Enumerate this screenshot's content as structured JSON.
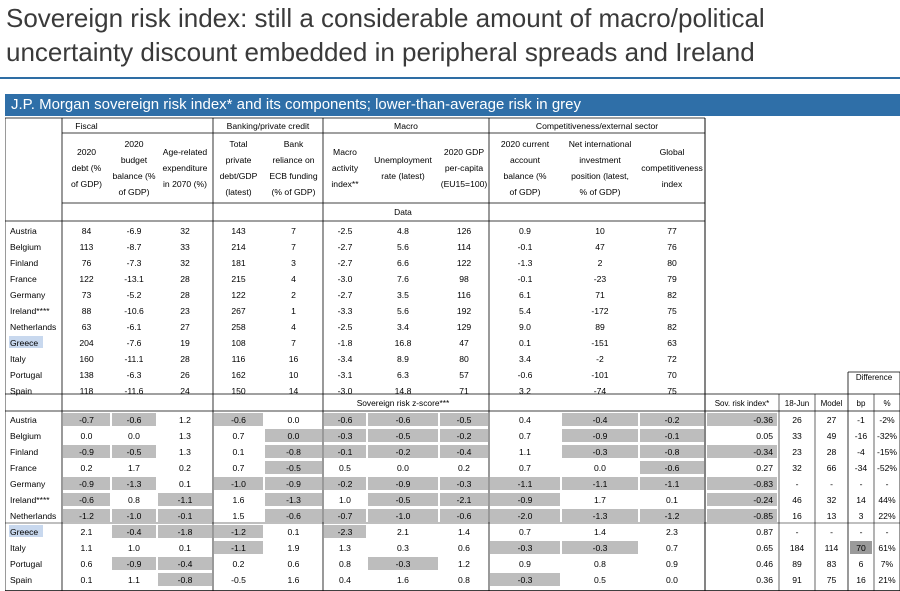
{
  "slide": {
    "title_line1": "Sovereign risk index: still a considerable amount of macro/political",
    "title_line2": "uncertainty discount embedded in peripheral spreads and Ireland",
    "banner": "J.P. Morgan sovereign risk index* and its components; lower-than-average risk in grey"
  },
  "groups": {
    "fiscal": "Fiscal",
    "banking": "Banking/private credit",
    "macro": "Macro",
    "comp": "Competitiveness/external sector"
  },
  "columns": [
    [
      "2020",
      "debt (%",
      "of GDP)"
    ],
    [
      "2020",
      "budget",
      "balance (%",
      "of GDP)"
    ],
    [
      "Age-related",
      "expenditure",
      "in 2070 (%)"
    ],
    [
      "Total",
      "private",
      "debt/GDP",
      "(latest)"
    ],
    [
      "Bank",
      "reliance on",
      "ECB funding",
      "(% of GDP)"
    ],
    [
      "Macro",
      "activity",
      "index**"
    ],
    [
      "Unemployment",
      "rate (latest)"
    ],
    [
      "2020 GDP",
      "per-capita",
      "(EU15=100)"
    ],
    [
      "2020 current",
      "account",
      "balance (%",
      "of GDP)"
    ],
    [
      "Net international",
      "investment",
      "position (latest,",
      "% of GDP)"
    ],
    [
      "Global",
      "competitiveness",
      "index"
    ]
  ],
  "data_label": "Data",
  "zscore_label": "Sovereign risk z-score***",
  "right_headers": {
    "risk_index": "Sov. risk index*",
    "date": "18-Jun",
    "model": "Model",
    "difference": "Difference",
    "bp": "bp",
    "pct": "%"
  },
  "data_rows": [
    {
      "country": "Austria",
      "values": [
        "84",
        "-6.9",
        "32",
        "143",
        "7",
        "-2.5",
        "4.8",
        "126",
        "0.9",
        "10",
        "77"
      ]
    },
    {
      "country": "Belgium",
      "values": [
        "113",
        "-8.7",
        "33",
        "214",
        "7",
        "-2.7",
        "5.6",
        "114",
        "-0.1",
        "47",
        "76"
      ]
    },
    {
      "country": "Finland",
      "values": [
        "76",
        "-7.3",
        "32",
        "181",
        "3",
        "-2.7",
        "6.6",
        "122",
        "-1.3",
        "2",
        "80"
      ]
    },
    {
      "country": "France",
      "values": [
        "122",
        "-13.1",
        "28",
        "215",
        "4",
        "-3.0",
        "7.6",
        "98",
        "-0.1",
        "-23",
        "79"
      ]
    },
    {
      "country": "Germany",
      "values": [
        "73",
        "-5.2",
        "28",
        "122",
        "2",
        "-2.7",
        "3.5",
        "116",
        "6.1",
        "71",
        "82"
      ]
    },
    {
      "country": "Ireland****",
      "values": [
        "88",
        "-10.6",
        "23",
        "267",
        "1",
        "-3.3",
        "5.6",
        "192",
        "5.4",
        "-172",
        "75"
      ]
    },
    {
      "country": "Netherlands",
      "values": [
        "63",
        "-6.1",
        "27",
        "258",
        "4",
        "-2.5",
        "3.4",
        "129",
        "9.0",
        "89",
        "82"
      ]
    },
    {
      "country": "Greece",
      "values": [
        "204",
        "-7.6",
        "19",
        "108",
        "7",
        "-1.8",
        "16.8",
        "47",
        "0.1",
        "-151",
        "63"
      ]
    },
    {
      "country": "Italy",
      "values": [
        "160",
        "-11.1",
        "28",
        "116",
        "16",
        "-3.4",
        "8.9",
        "80",
        "3.4",
        "-2",
        "72"
      ]
    },
    {
      "country": "Portugal",
      "values": [
        "138",
        "-6.3",
        "26",
        "162",
        "10",
        "-3.1",
        "6.3",
        "57",
        "-0.6",
        "-101",
        "70"
      ]
    },
    {
      "country": "Spain",
      "values": [
        "118",
        "-11.6",
        "24",
        "150",
        "14",
        "-3.0",
        "14.8",
        "71",
        "3.2",
        "-74",
        "75"
      ]
    }
  ],
  "z_rows": [
    {
      "country": "Austria",
      "values": [
        "-0.7",
        "-0.6",
        "1.2",
        "-0.6",
        "0.0",
        "-0.6",
        "-0.6",
        "-0.5",
        "0.4",
        "-0.4",
        "-0.2"
      ],
      "grey": [
        1,
        1,
        0,
        1,
        0,
        1,
        1,
        1,
        0,
        1,
        1
      ],
      "risk": "-0.36",
      "risk_grey": 1,
      "jun": "26",
      "model": "27",
      "bp": "-1",
      "pct": "-2%"
    },
    {
      "country": "Belgium",
      "values": [
        "0.0",
        "0.0",
        "1.3",
        "0.7",
        "0.0",
        "-0.3",
        "-0.5",
        "-0.2",
        "0.7",
        "-0.9",
        "-0.1"
      ],
      "grey": [
        0,
        0,
        0,
        0,
        1,
        1,
        1,
        1,
        0,
        1,
        1
      ],
      "risk": "0.05",
      "risk_grey": 0,
      "jun": "33",
      "model": "49",
      "bp": "-16",
      "pct": "-32%"
    },
    {
      "country": "Finland",
      "values": [
        "-0.9",
        "-0.5",
        "1.3",
        "0.1",
        "-0.8",
        "-0.1",
        "-0.2",
        "-0.4",
        "1.1",
        "-0.3",
        "-0.8"
      ],
      "grey": [
        1,
        1,
        0,
        0,
        1,
        1,
        1,
        1,
        0,
        1,
        1
      ],
      "risk": "-0.34",
      "risk_grey": 1,
      "jun": "23",
      "model": "28",
      "bp": "-4",
      "pct": "-15%"
    },
    {
      "country": "France",
      "values": [
        "0.2",
        "1.7",
        "0.2",
        "0.7",
        "-0.5",
        "0.5",
        "0.0",
        "0.2",
        "0.7",
        "0.0",
        "-0.6"
      ],
      "grey": [
        0,
        0,
        0,
        0,
        1,
        0,
        0,
        0,
        0,
        0,
        1
      ],
      "risk": "0.27",
      "risk_grey": 0,
      "jun": "32",
      "model": "66",
      "bp": "-34",
      "pct": "-52%"
    },
    {
      "country": "Germany",
      "values": [
        "-0.9",
        "-1.3",
        "0.1",
        "-1.0",
        "-0.9",
        "-0.2",
        "-0.9",
        "-0.3",
        "-1.1",
        "-1.1",
        "-1.1"
      ],
      "grey": [
        1,
        1,
        0,
        1,
        1,
        1,
        1,
        1,
        1,
        1,
        1
      ],
      "risk": "-0.83",
      "risk_grey": 1,
      "jun": "-",
      "model": "-",
      "bp": "-",
      "pct": "-"
    },
    {
      "country": "Ireland****",
      "values": [
        "-0.6",
        "0.8",
        "-1.1",
        "1.6",
        "-1.3",
        "1.0",
        "-0.5",
        "-2.1",
        "-0.9",
        "1.7",
        "0.1"
      ],
      "grey": [
        1,
        0,
        1,
        0,
        1,
        0,
        1,
        1,
        1,
        0,
        0
      ],
      "risk": "-0.24",
      "risk_grey": 1,
      "jun": "46",
      "model": "32",
      "bp": "14",
      "pct": "44%"
    },
    {
      "country": "Netherlands",
      "values": [
        "-1.2",
        "-1.0",
        "-0.1",
        "1.5",
        "-0.6",
        "-0.7",
        "-1.0",
        "-0.6",
        "-2.0",
        "-1.3",
        "-1.2"
      ],
      "grey": [
        1,
        1,
        1,
        0,
        1,
        1,
        1,
        1,
        1,
        1,
        1
      ],
      "risk": "-0.85",
      "risk_grey": 1,
      "jun": "16",
      "model": "13",
      "bp": "3",
      "pct": "22%"
    },
    {
      "country": "Greece",
      "values": [
        "2.1",
        "-0.4",
        "-1.8",
        "-1.2",
        "0.1",
        "-2.3",
        "2.1",
        "1.4",
        "0.7",
        "1.4",
        "2.3"
      ],
      "grey": [
        0,
        1,
        1,
        1,
        0,
        1,
        0,
        0,
        0,
        0,
        0
      ],
      "risk": "0.87",
      "risk_grey": 0,
      "jun": "-",
      "model": "-",
      "bp": "-",
      "pct": "-"
    },
    {
      "country": "Italy",
      "values": [
        "1.1",
        "1.0",
        "0.1",
        "-1.1",
        "1.9",
        "1.3",
        "0.3",
        "0.6",
        "-0.3",
        "-0.3",
        "0.7"
      ],
      "grey": [
        0,
        0,
        0,
        1,
        0,
        0,
        0,
        0,
        1,
        1,
        0
      ],
      "risk": "0.65",
      "risk_grey": 0,
      "jun": "184",
      "model": "114",
      "bp": "70",
      "pct": "61%"
    },
    {
      "country": "Portugal",
      "values": [
        "0.6",
        "-0.9",
        "-0.4",
        "0.2",
        "0.6",
        "0.8",
        "-0.3",
        "1.2",
        "0.9",
        "0.8",
        "0.9"
      ],
      "grey": [
        0,
        1,
        1,
        0,
        0,
        0,
        1,
        0,
        0,
        0,
        0
      ],
      "risk": "0.46",
      "risk_grey": 0,
      "jun": "89",
      "model": "83",
      "bp": "6",
      "pct": "7%"
    },
    {
      "country": "Spain",
      "values": [
        "0.1",
        "1.1",
        "-0.8",
        "-0.5",
        "1.6",
        "0.4",
        "1.6",
        "0.8",
        "-0.3",
        "0.5",
        "0.0"
      ],
      "grey": [
        0,
        0,
        1,
        0,
        0,
        0,
        0,
        0,
        1,
        0,
        0
      ],
      "risk": "0.36",
      "risk_grey": 0,
      "jun": "91",
      "model": "75",
      "bp": "16",
      "pct": "21%"
    }
  ],
  "colors": {
    "banner": "#2f6fa8",
    "grey_cell": "#bdbdbd",
    "greece_highlight": "#c8d8ee",
    "bp_highlight": "#9a9a9a"
  }
}
